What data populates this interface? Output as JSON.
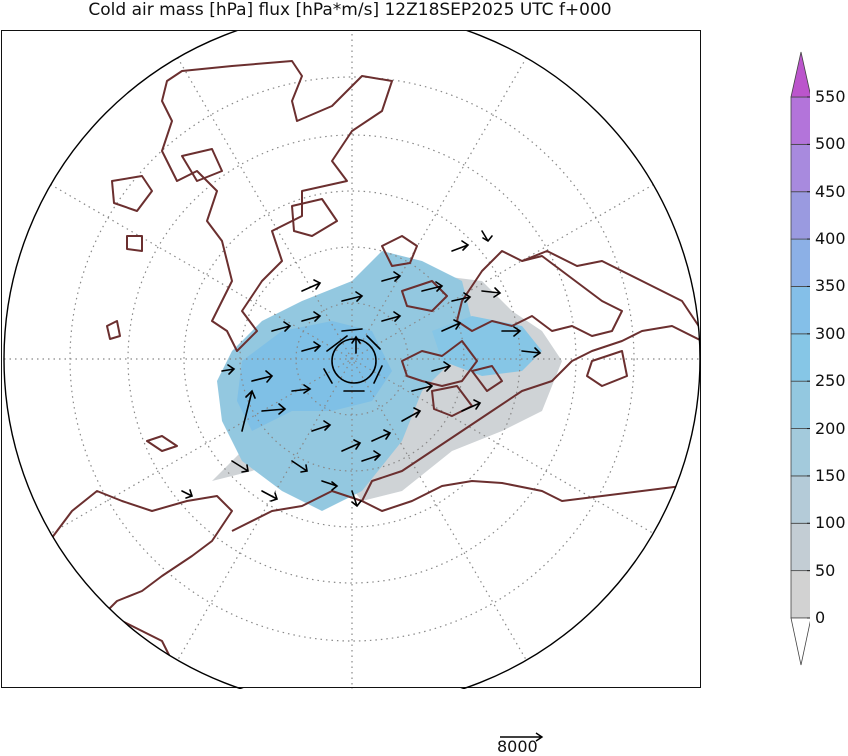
{
  "title": "Cold air mass [hPa] flux [hPa*m/s] 12Z18SEP2025 UTC f+000",
  "colorbar": {
    "levels": [
      "0",
      "50",
      "100",
      "150",
      "200",
      "250",
      "300",
      "350",
      "400",
      "450",
      "500",
      "550"
    ],
    "colors": [
      "#d2d2d2",
      "#c3cdd4",
      "#b4cbd8",
      "#a3cadc",
      "#93c8e0",
      "#86c6e6",
      "#84bfe8",
      "#8cb0e6",
      "#9a9ae0",
      "#a88ade",
      "#b374da",
      "#bb55cc"
    ],
    "extend_max_color": "#bb55cc",
    "extend_min_color": "#ffffff"
  },
  "reference_vector": {
    "label": "8000"
  },
  "map": {
    "projection": "north-polar-stereographic",
    "coastline_color": "#6b2f2f",
    "grid_color": "#888888",
    "field_colors": {
      "light": "#8fc7e2",
      "mid": "#7fc0e6",
      "grey": "#cfd3d6"
    }
  }
}
